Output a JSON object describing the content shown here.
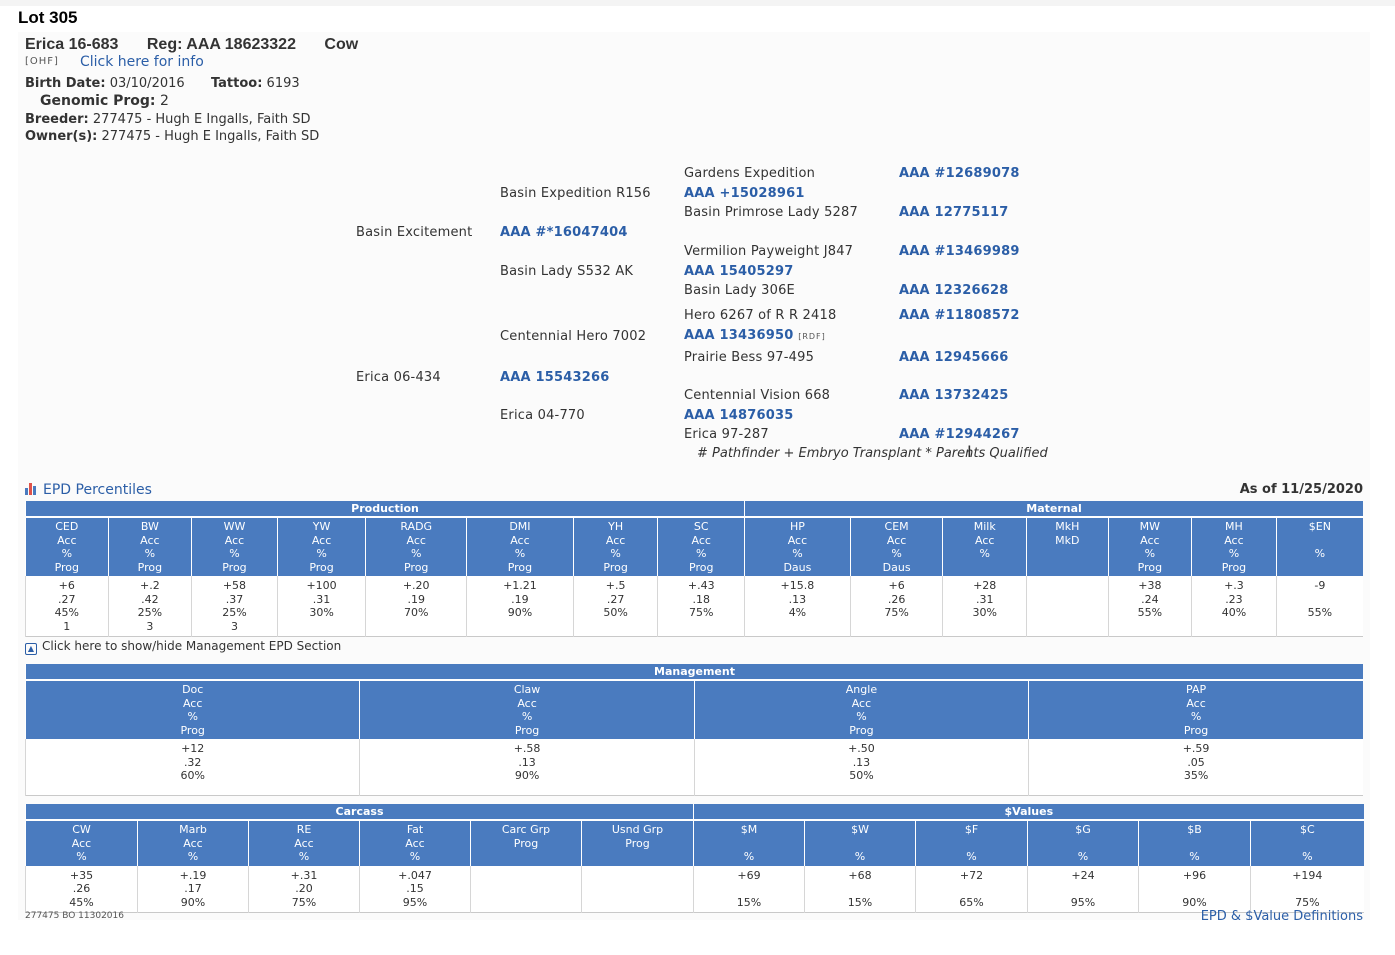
{
  "lot": "Lot 305",
  "animal": {
    "name": "Erica 16-683",
    "reg": "Reg: AAA 18623322",
    "sex": "Cow",
    "ohf": "[OHF]",
    "info_link": "Click here for info",
    "birth_label": "Birth Date:",
    "birth_date": "03/10/2016",
    "tattoo_label": "Tattoo:",
    "tattoo": "6193",
    "genomic_label": "Genomic Prog:",
    "genomic_prog": "2",
    "breeder_label": "Breeder:",
    "breeder": "277475 -  Hugh E Ingalls, Faith SD",
    "owner_label": "Owner(s):",
    "owner": "277475 - Hugh E Ingalls, Faith SD"
  },
  "pedigree": {
    "sire": {
      "name": "Basin Excitement",
      "reg": "AAA #*16047404"
    },
    "sire_sire": {
      "name": "Basin Expedition R156",
      "reg": "AAA +15028961"
    },
    "sire_sire_sire": {
      "name": "Gardens Expedition",
      "reg": "AAA #12689078"
    },
    "sire_sire_dam": {
      "name": "Basin Primrose Lady 5287",
      "reg": "AAA 12775117"
    },
    "sire_dam": {
      "name": "Basin Lady S532 AK",
      "reg": "AAA 15405297"
    },
    "sire_dam_sire": {
      "name": "Vermilion Payweight J847",
      "reg": "AAA #13469989"
    },
    "sire_dam_dam": {
      "name": "Basin Lady 306E",
      "reg": "AAA 12326628"
    },
    "dam": {
      "name": "Erica 06-434",
      "reg": "AAA 15543266"
    },
    "dam_sire": {
      "name": "Centennial Hero 7002",
      "reg": "AAA 13436950",
      "tag": "[RDF]"
    },
    "dam_sire_sire": {
      "name": "Hero 6267 of R R 2418",
      "reg": "AAA #11808572"
    },
    "dam_sire_dam": {
      "name": "Prairie Bess 97-495",
      "reg": "AAA 12945666"
    },
    "dam_dam": {
      "name": "Erica 04-770",
      "reg": "AAA 14876035"
    },
    "dam_dam_sire": {
      "name": "Centennial Vision 668",
      "reg": "AAA 13732425"
    },
    "dam_dam_dam": {
      "name": "Erica 97-287",
      "reg": "AAA #12944267"
    },
    "footnote": "# Pathfinder + Embryo Transplant * Parents Qualified"
  },
  "epd": {
    "title": "EPD Percentiles",
    "as_of": "As of 11/25/2020",
    "groups": {
      "production": "Production",
      "maternal": "Maternal"
    },
    "cols": [
      {
        "h": [
          "CED",
          "Acc",
          "%",
          "Prog"
        ],
        "v": [
          "+6",
          ".27",
          "45%",
          "1"
        ]
      },
      {
        "h": [
          "BW",
          "Acc",
          "%",
          "Prog"
        ],
        "v": [
          "+.2",
          ".42",
          "25%",
          "3"
        ]
      },
      {
        "h": [
          "WW",
          "Acc",
          "%",
          "Prog"
        ],
        "v": [
          "+58",
          ".37",
          "25%",
          "3"
        ]
      },
      {
        "h": [
          "YW",
          "Acc",
          "%",
          "Prog"
        ],
        "v": [
          "+100",
          ".31",
          "30%",
          ""
        ]
      },
      {
        "h": [
          "RADG",
          "Acc",
          "%",
          "Prog"
        ],
        "v": [
          "+.20",
          ".19",
          "70%",
          ""
        ]
      },
      {
        "h": [
          "DMI",
          "Acc",
          "%",
          "Prog"
        ],
        "v": [
          "+1.21",
          ".19",
          "90%",
          ""
        ]
      },
      {
        "h": [
          "YH",
          "Acc",
          "%",
          "Prog"
        ],
        "v": [
          "+.5",
          ".27",
          "50%",
          ""
        ]
      },
      {
        "h": [
          "SC",
          "Acc",
          "%",
          "Prog"
        ],
        "v": [
          "+.43",
          ".18",
          "75%",
          ""
        ]
      },
      {
        "h": [
          "HP",
          "Acc",
          "%",
          "Daus"
        ],
        "v": [
          "+15.8",
          ".13",
          "4%",
          ""
        ]
      },
      {
        "h": [
          "CEM",
          "Acc",
          "%",
          "Daus"
        ],
        "v": [
          "+6",
          ".26",
          "75%",
          ""
        ]
      },
      {
        "h": [
          "Milk",
          "Acc",
          "%",
          ""
        ],
        "v": [
          "+28",
          ".31",
          "30%",
          ""
        ]
      },
      {
        "h": [
          "MkH",
          "MkD",
          "",
          ""
        ],
        "v": [
          "",
          "",
          "",
          ""
        ]
      },
      {
        "h": [
          "MW",
          "Acc",
          "%",
          "Prog"
        ],
        "v": [
          "+38",
          ".24",
          "55%",
          ""
        ]
      },
      {
        "h": [
          "MH",
          "Acc",
          "%",
          "Prog"
        ],
        "v": [
          "+.3",
          ".23",
          "40%",
          ""
        ]
      },
      {
        "h": [
          "$EN",
          "",
          "%",
          ""
        ],
        "v": [
          "-9",
          "",
          "55%",
          ""
        ]
      }
    ]
  },
  "management_toggle": "Click here to show/hide Management EPD Section",
  "management": {
    "title": "Management",
    "cols": [
      {
        "h": [
          "Doc",
          "Acc",
          "%",
          "Prog"
        ],
        "v": [
          "+12",
          ".32",
          "60%"
        ]
      },
      {
        "h": [
          "Claw",
          "Acc",
          "%",
          "Prog"
        ],
        "v": [
          "+.58",
          ".13",
          "90%"
        ]
      },
      {
        "h": [
          "Angle",
          "Acc",
          "%",
          "Prog"
        ],
        "v": [
          "+.50",
          ".13",
          "50%"
        ]
      },
      {
        "h": [
          "PAP",
          "Acc",
          "%",
          "Prog"
        ],
        "v": [
          "+.59",
          ".05",
          "35%"
        ]
      }
    ]
  },
  "carcass": {
    "groups": {
      "carcass": "Carcass",
      "values": "$Values"
    },
    "cols": [
      {
        "h": [
          "CW",
          "Acc",
          "%"
        ],
        "v": [
          "+35",
          ".26",
          "45%"
        ]
      },
      {
        "h": [
          "Marb",
          "Acc",
          "%"
        ],
        "v": [
          "+.19",
          ".17",
          "90%"
        ]
      },
      {
        "h": [
          "RE",
          "Acc",
          "%"
        ],
        "v": [
          "+.31",
          ".20",
          "75%"
        ]
      },
      {
        "h": [
          "Fat",
          "Acc",
          "%"
        ],
        "v": [
          "+.047",
          ".15",
          "95%"
        ]
      },
      {
        "h": [
          "Carc Grp",
          "Prog",
          ""
        ],
        "v": [
          "",
          "",
          ""
        ]
      },
      {
        "h": [
          "Usnd Grp",
          "Prog",
          ""
        ],
        "v": [
          "",
          "",
          ""
        ]
      },
      {
        "h": [
          "$M",
          "",
          "%"
        ],
        "v": [
          "+69",
          "",
          "15%"
        ]
      },
      {
        "h": [
          "$W",
          "",
          "%"
        ],
        "v": [
          "+68",
          "",
          "15%"
        ]
      },
      {
        "h": [
          "$F",
          "",
          "%"
        ],
        "v": [
          "+72",
          "",
          "65%"
        ]
      },
      {
        "h": [
          "$G",
          "",
          "%"
        ],
        "v": [
          "+24",
          "",
          "95%"
        ]
      },
      {
        "h": [
          "$B",
          "",
          "%"
        ],
        "v": [
          "+96",
          "",
          "90%"
        ]
      },
      {
        "h": [
          "$C",
          "",
          "%"
        ],
        "v": [
          "+194",
          "",
          "75%"
        ]
      }
    ]
  },
  "footer": {
    "code": "277475 BO 11302016",
    "definitions_link": "EPD & $Value Definitions"
  },
  "colors": {
    "header_blue": "#4a7bbf",
    "link_blue": "#2b5ea7"
  }
}
